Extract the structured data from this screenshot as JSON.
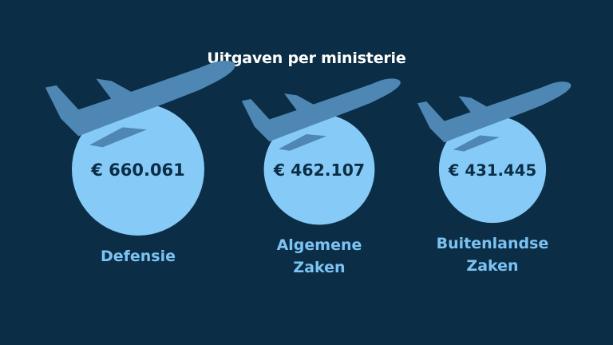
{
  "chart_data": {
    "type": "bubble",
    "title": "Uitgaven per ministerie",
    "series": [
      {
        "name": "",
        "values": [
          660061,
          462107,
          431445
        ]
      }
    ],
    "categories": [
      "Defensie",
      "Algemene\nZaken",
      "Buitenlandse\nZaken"
    ],
    "value_labels": [
      "€ 660.061",
      "€ 462.107",
      "€ 431.445"
    ],
    "icon": "airplane-icon",
    "colors": {
      "background": "#0b2d45",
      "bubble": "#86cbf8",
      "airplane": "#4f87b4",
      "value_text": "#0b2d45",
      "category_text": "#7cc3f3",
      "title_text": "#ffffff"
    }
  }
}
